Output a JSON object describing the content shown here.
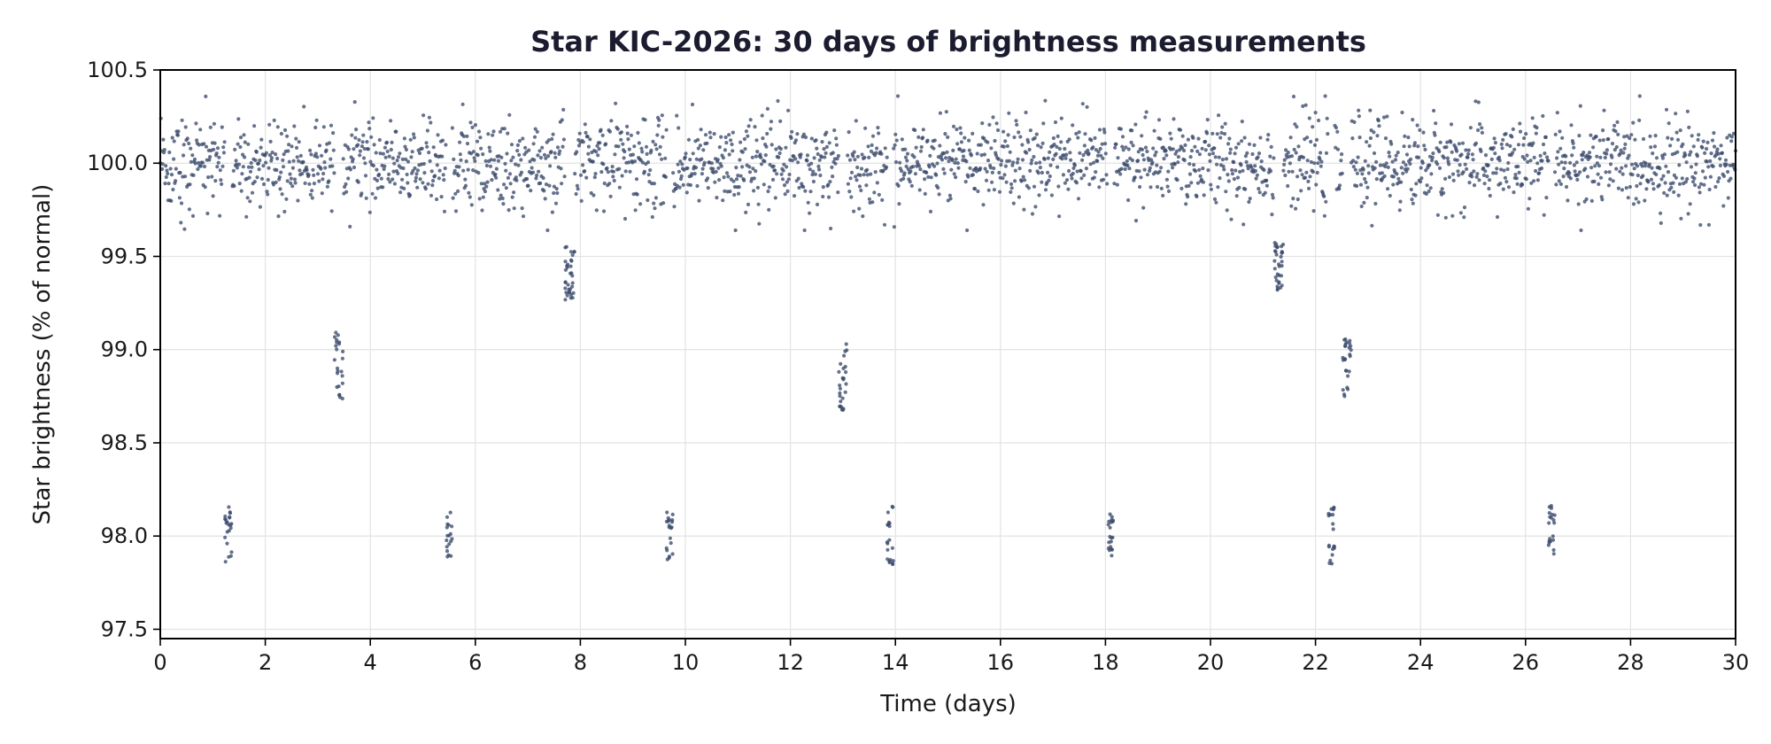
{
  "chart_data": {
    "type": "scatter",
    "title": "Star KIC-2026: 30 days of brightness measurements",
    "xlabel": "Time (days)",
    "ylabel": "Star brightness (% of normal)",
    "xlim": [
      0,
      30
    ],
    "ylim": [
      97.45,
      100.5
    ],
    "x_ticks": [
      "0",
      "2",
      "4",
      "6",
      "8",
      "10",
      "12",
      "14",
      "16",
      "18",
      "20",
      "22",
      "24",
      "26",
      "28",
      "30"
    ],
    "y_ticks": [
      "97.5",
      "98.0",
      "98.5",
      "99.0",
      "99.5",
      "100.0",
      "100.5"
    ],
    "grid": true,
    "legend": "none",
    "point_color": "#3b4a6b",
    "baseline": {
      "level": 100.0,
      "scatter_std": 0.12,
      "x_start": 0.0,
      "x_end": 30.0,
      "n_points": 2600
    },
    "dips": [
      {
        "center": 1.3,
        "width": 0.14,
        "level": 98.0,
        "spread": 0.12,
        "n_points": 22
      },
      {
        "center": 3.4,
        "width": 0.16,
        "level": 98.9,
        "spread": 0.15,
        "n_points": 24
      },
      {
        "center": 5.5,
        "width": 0.12,
        "level": 98.0,
        "spread": 0.1,
        "n_points": 18
      },
      {
        "center": 7.8,
        "width": 0.18,
        "level": 99.4,
        "spread": 0.12,
        "n_points": 34
      },
      {
        "center": 9.7,
        "width": 0.12,
        "level": 98.0,
        "spread": 0.1,
        "n_points": 20
      },
      {
        "center": 13.0,
        "width": 0.16,
        "level": 98.85,
        "spread": 0.14,
        "n_points": 26
      },
      {
        "center": 13.9,
        "width": 0.12,
        "level": 98.0,
        "spread": 0.13,
        "n_points": 20
      },
      {
        "center": 18.1,
        "width": 0.12,
        "level": 98.0,
        "spread": 0.1,
        "n_points": 20
      },
      {
        "center": 21.3,
        "width": 0.17,
        "level": 99.45,
        "spread": 0.1,
        "n_points": 32
      },
      {
        "center": 22.3,
        "width": 0.12,
        "level": 98.0,
        "spread": 0.12,
        "n_points": 20
      },
      {
        "center": 22.6,
        "width": 0.16,
        "level": 98.9,
        "spread": 0.12,
        "n_points": 26
      },
      {
        "center": 26.5,
        "width": 0.12,
        "level": 98.0,
        "spread": 0.13,
        "n_points": 20
      }
    ]
  }
}
